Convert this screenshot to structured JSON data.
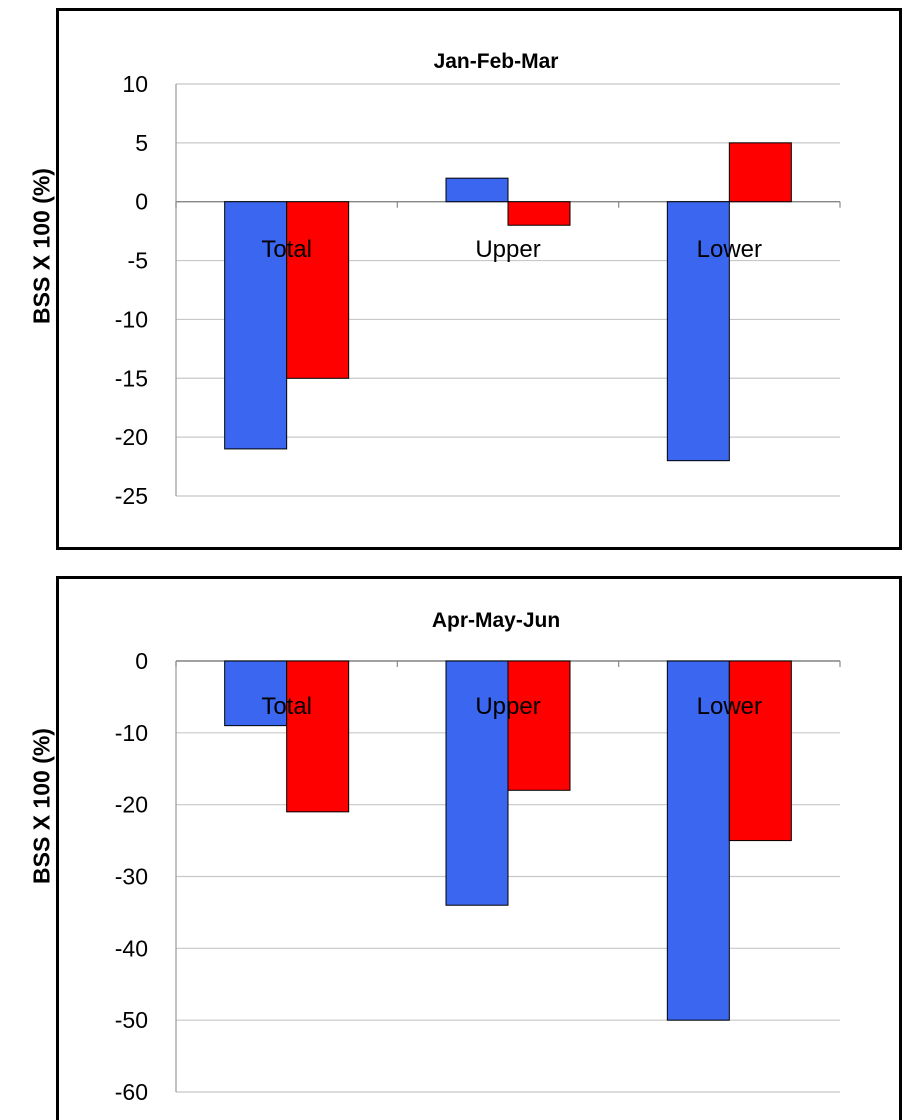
{
  "chart_data": [
    {
      "type": "bar",
      "title": "Jan-Feb-Mar",
      "ylabel": "BSS X 100 (%)",
      "xlabel": "",
      "categories": [
        "Total",
        "Upper",
        "Lower"
      ],
      "ylim": [
        -25,
        10
      ],
      "yticks": [
        10,
        5,
        0,
        -5,
        -10,
        -15,
        -20,
        -25
      ],
      "grid": true,
      "series": [
        {
          "color": "#3a66f0",
          "values": [
            -21,
            2,
            -22
          ]
        },
        {
          "color": "#ff0000",
          "values": [
            -15,
            -2,
            5
          ]
        }
      ]
    },
    {
      "type": "bar",
      "title": "Apr-May-Jun",
      "ylabel": "BSS X 100 (%)",
      "xlabel": "",
      "categories": [
        "Total",
        "Upper",
        "Lower"
      ],
      "ylim": [
        -60,
        0
      ],
      "yticks": [
        0,
        -10,
        -20,
        -30,
        -40,
        -50,
        -60
      ],
      "grid": true,
      "series": [
        {
          "color": "#3a66f0",
          "values": [
            -9,
            -34,
            -50
          ]
        },
        {
          "color": "#ff0000",
          "values": [
            -21,
            -18,
            -25
          ]
        }
      ]
    }
  ]
}
